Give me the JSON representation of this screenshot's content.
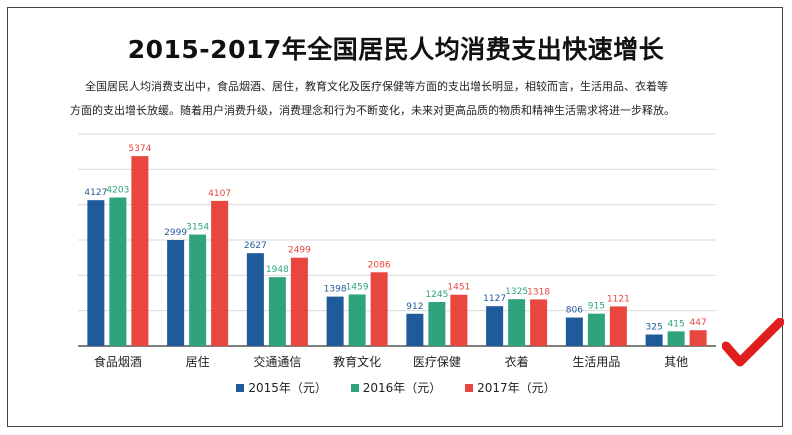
{
  "title": "2015-2017年全国居民人均消费支出快速增长",
  "description": {
    "line1": "全国居民人均消费支出中，食品烟酒、居住，教育文化及医疗保健等方面的支出增长明显，相较而言，生活用品、衣着等",
    "line2": "方面的支出增长放缓。随着用户消费升级，消费理念和行为不断变化，未来对更高品质的物质和精神生活需求将进一步释放。"
  },
  "colors": {
    "s2015": "#1f5b9a",
    "s2016": "#2ea37d",
    "s2017": "#e8463f",
    "check": "#e01e1e"
  },
  "chart_data": {
    "type": "bar",
    "categories": [
      "食品烟酒",
      "居住",
      "交通通信",
      "教育文化",
      "医疗保健",
      "衣着",
      "生活用品",
      "其他"
    ],
    "series": [
      {
        "name": "2015年（元）",
        "values": [
          4127,
          2999,
          2627,
          1398,
          912,
          1127,
          806,
          325
        ]
      },
      {
        "name": "2016年（元）",
        "values": [
          4203,
          3154,
          1948,
          1459,
          1245,
          1325,
          915,
          415
        ]
      },
      {
        "name": "2017年（元）",
        "values": [
          5374,
          4107,
          2499,
          2086,
          1451,
          1318,
          1121,
          447
        ]
      }
    ],
    "ylim": [
      0,
      6000
    ],
    "grid": true,
    "legend": "bottom"
  }
}
